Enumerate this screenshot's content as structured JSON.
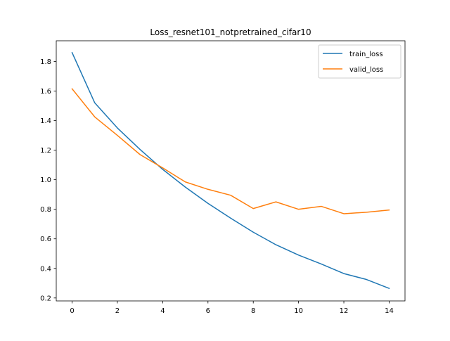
{
  "chart_data": {
    "type": "line",
    "title": "Loss_resnet101_notpretrained_cifar10",
    "xlabel": "",
    "ylabel": "",
    "xlim": [
      -0.7,
      14.7
    ],
    "ylim": [
      0.18,
      1.94
    ],
    "x_ticks": [
      0,
      2,
      4,
      6,
      8,
      10,
      12,
      14
    ],
    "y_ticks": [
      0.2,
      0.4,
      0.6,
      0.8,
      1.0,
      1.2,
      1.4,
      1.6,
      1.8
    ],
    "x_tick_labels": [
      "0",
      "2",
      "4",
      "6",
      "8",
      "10",
      "12",
      "14"
    ],
    "y_tick_labels": [
      "0.2",
      "0.4",
      "0.6",
      "0.8",
      "1.0",
      "1.2",
      "1.4",
      "1.6",
      "1.8"
    ],
    "grid": false,
    "legend_position": "top-right",
    "x": [
      0,
      1,
      2,
      3,
      4,
      5,
      6,
      7,
      8,
      9,
      10,
      11,
      12,
      13,
      14
    ],
    "series": [
      {
        "name": "train_loss",
        "color": "#1f77b4",
        "values": [
          1.86,
          1.52,
          1.35,
          1.205,
          1.07,
          0.95,
          0.84,
          0.74,
          0.645,
          0.56,
          0.49,
          0.43,
          0.365,
          0.325,
          0.265
        ]
      },
      {
        "name": "valid_loss",
        "color": "#ff7f0e",
        "values": [
          1.615,
          1.425,
          1.3,
          1.17,
          1.08,
          0.985,
          0.935,
          0.895,
          0.805,
          0.85,
          0.8,
          0.82,
          0.77,
          0.78,
          0.795
        ]
      }
    ]
  }
}
